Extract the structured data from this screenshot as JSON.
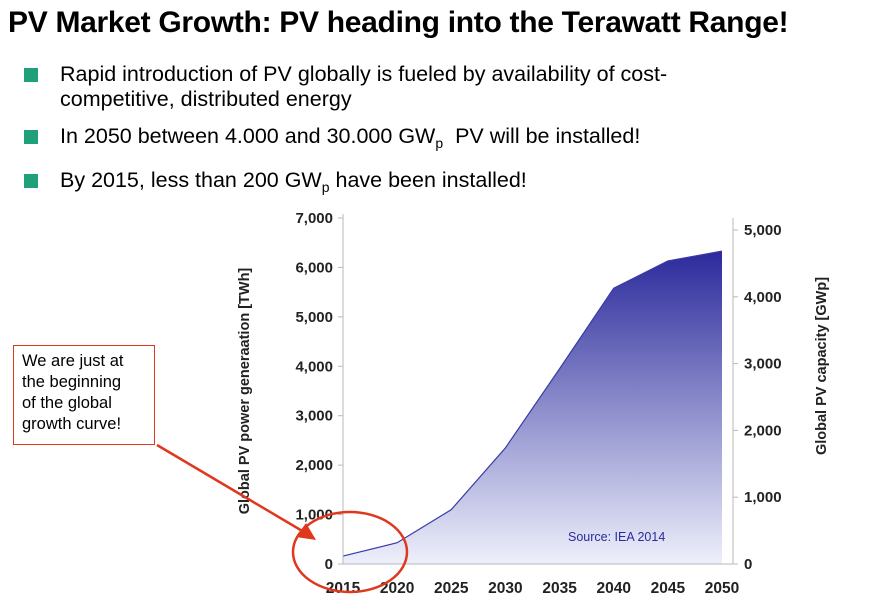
{
  "slide": {
    "title": "PV Market Growth: PV heading into the Terawatt Range!",
    "bullets": [
      {
        "text": "Rapid introduction of PV globally is fueled by availability of cost-",
        "text2": "competitive, distributed energy"
      },
      {
        "pre": "In 2050 between 4.000 and 30.000 GW",
        "sub": "p",
        "post": "  PV will be installed!"
      },
      {
        "pre": "By 2015, less than 200 GW",
        "sub": "p",
        "post": " have been installed!"
      }
    ],
    "callout": {
      "lines": [
        "We are just at",
        "the beginning",
        "of the global",
        "growth curve!"
      ],
      "color": "#e0381f"
    }
  },
  "chart_data": {
    "type": "area",
    "x": [
      2015,
      2020,
      2025,
      2030,
      2035,
      2040,
      2045,
      2050
    ],
    "series": [
      {
        "values": [
          160,
          430,
          1100,
          2350,
          3950,
          5580,
          6130,
          6330
        ]
      }
    ],
    "ylabel": "Global PV power generaation  [TWh]",
    "ylim": [
      0,
      7000
    ],
    "yticks": [
      "0",
      "1,000",
      "2,000",
      "3,000",
      "4,000",
      "5,000",
      "6,000",
      "7,000"
    ],
    "y2label": "Global PV capacity [GWp]",
    "y2lim": [
      0,
      5000
    ],
    "y2ticks": [
      "0",
      "1,000",
      "2,000",
      "3,000",
      "4,000",
      "5,000"
    ],
    "xticks": [
      "2015",
      "2020",
      "2025",
      "2030",
      "2035",
      "2040",
      "2045",
      "2050"
    ],
    "annotation": "Source:  IEA 2014",
    "colors": {
      "top": "#2b2a9c",
      "bottom": "#eef0fb",
      "source": "#2b2a9c"
    },
    "grid": false
  }
}
